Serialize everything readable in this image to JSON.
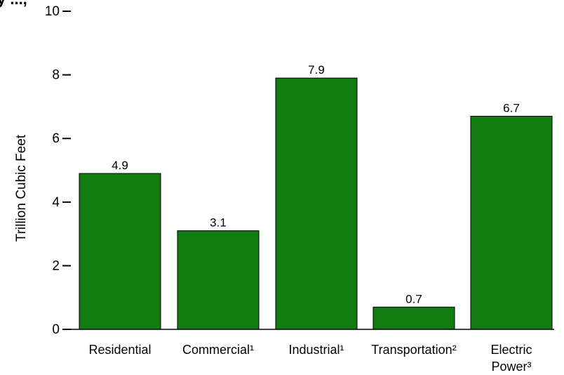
{
  "chart_data": {
    "type": "bar",
    "title_fragment": "y ...,",
    "ylabel": "Trillion Cubic Feet",
    "xlabel": "",
    "ylim": [
      0,
      10
    ],
    "yticks": [
      "0",
      "2",
      "4",
      "6",
      "8",
      "10"
    ],
    "grid": false,
    "bar_color": "#127c12",
    "categories": [
      [
        "Residential"
      ],
      [
        "Commercial¹"
      ],
      [
        "Industrial¹"
      ],
      [
        "Transportation²"
      ],
      [
        "Electric",
        "Power³"
      ]
    ],
    "values": [
      4.9,
      3.1,
      7.9,
      0.7,
      6.7
    ],
    "value_labels": [
      "4.9",
      "3.1",
      "7.9",
      "0.7",
      "6.7"
    ]
  }
}
